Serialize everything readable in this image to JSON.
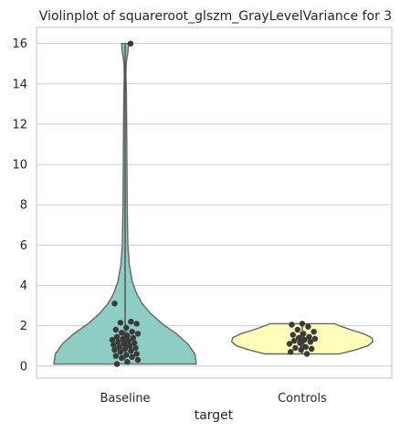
{
  "chart_data": {
    "type": "violin",
    "title": "Violinplot of squareroot_glszm_GrayLevelVariance for 3",
    "xlabel": "target",
    "ylabel": "",
    "ylim": [
      -0.6,
      16.8
    ],
    "yticks": [
      0,
      2,
      4,
      6,
      8,
      10,
      12,
      14,
      16
    ],
    "grid": true,
    "categories": [
      "Baseline",
      "Controls"
    ],
    "colors": [
      "#8ecdc4",
      "#fdfcb8"
    ],
    "series": [
      {
        "category": "Baseline",
        "range": [
          0.1,
          16.0
        ],
        "quartiles": [
          0.8,
          1.2,
          1.7
        ],
        "points": [
          16.0,
          3.1,
          2.2,
          2.15,
          2.1,
          1.9,
          1.8,
          1.7,
          1.65,
          1.6,
          1.5,
          1.45,
          1.4,
          1.35,
          1.3,
          1.25,
          1.2,
          1.15,
          1.1,
          1.05,
          1.0,
          0.95,
          0.9,
          0.85,
          0.8,
          0.75,
          0.7,
          0.6,
          0.55,
          0.5,
          0.45,
          0.4,
          0.3,
          0.2,
          0.1
        ]
      },
      {
        "category": "Controls",
        "range": [
          0.6,
          2.1
        ],
        "quartiles": [
          0.9,
          1.3,
          1.7
        ],
        "points": [
          2.1,
          2.05,
          1.95,
          1.8,
          1.7,
          1.6,
          1.55,
          1.45,
          1.4,
          1.35,
          1.3,
          1.25,
          1.2,
          1.15,
          1.1,
          0.95,
          0.9,
          0.85,
          0.8,
          0.7,
          0.6
        ]
      }
    ]
  }
}
